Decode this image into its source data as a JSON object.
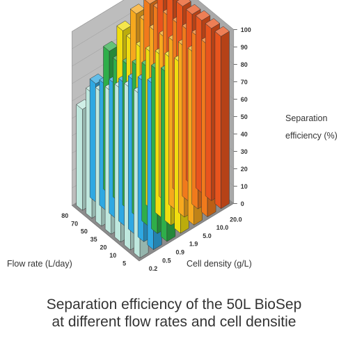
{
  "chart_data": {
    "type": "bar3d",
    "title": "",
    "zlabel_lines": [
      "Separation",
      "efficiency (%)"
    ],
    "xlabel": "Flow rate (L/day)",
    "ylabel": "Cell density (g/L)",
    "x_categories": [
      "5",
      "10",
      "20",
      "35",
      "50",
      "70",
      "80"
    ],
    "y_categories": [
      "0.2",
      "0.5",
      "0.9",
      "1.9",
      "5.0",
      "10.0",
      "20.0"
    ],
    "z_ticks": [
      "0",
      "10",
      "20",
      "30",
      "40",
      "50",
      "60",
      "70",
      "80",
      "90",
      "100"
    ],
    "zlim": [
      0,
      100
    ],
    "series": [
      {
        "name": "0.2",
        "color": "#bfe8de",
        "values": [
          94,
          93,
          88,
          82,
          77,
          72,
          58
        ]
      },
      {
        "name": "0.5",
        "color": "#2fa8e2",
        "values": [
          95,
          92,
          88,
          82,
          77,
          72,
          68
        ]
      },
      {
        "name": "0.9",
        "color": "#2fae4a",
        "values": [
          97,
          94,
          91,
          87,
          83,
          80,
          82
        ]
      },
      {
        "name": "1.9",
        "color": "#f0dd10",
        "values": [
          98,
          96,
          93,
          90,
          88,
          88,
          89
        ]
      },
      {
        "name": "5.0",
        "color": "#f6a81e",
        "values": [
          99,
          98,
          96,
          94,
          93,
          94,
          94
        ]
      },
      {
        "name": "10.0",
        "color": "#f07a1c",
        "values": [
          99,
          99,
          98,
          97,
          97,
          96,
          95
        ]
      },
      {
        "name": "20.0",
        "color": "#e8541d",
        "values": [
          99,
          99,
          99,
          98,
          98,
          97,
          96
        ]
      }
    ]
  },
  "caption": {
    "line1": "Separation efficiency of the 50L BioSep",
    "line2": "at different flow rates and cell densitie"
  }
}
